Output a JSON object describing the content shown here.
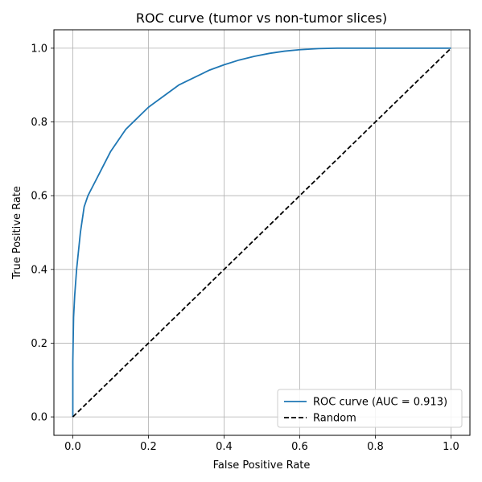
{
  "chart_data": {
    "type": "line",
    "title": "ROC curve (tumor vs non-tumor slices)",
    "xlabel": "False Positive Rate",
    "ylabel": "True Positive Rate",
    "xlim": [
      -0.05,
      1.05
    ],
    "ylim": [
      -0.05,
      1.05
    ],
    "grid": true,
    "legend_position": "lower-right",
    "x_ticks": [
      "0.0",
      "0.2",
      "0.4",
      "0.6",
      "0.8",
      "1.0"
    ],
    "y_ticks": [
      "0.0",
      "0.2",
      "0.4",
      "0.6",
      "0.8",
      "1.0"
    ],
    "series": [
      {
        "name": "ROC curve (AUC = 0.913)",
        "color": "#1f77b4",
        "style": "solid",
        "x": [
          0.0,
          0.0,
          0.002,
          0.005,
          0.01,
          0.015,
          0.02,
          0.03,
          0.04,
          0.05,
          0.06,
          0.08,
          0.1,
          0.12,
          0.14,
          0.16,
          0.18,
          0.2,
          0.24,
          0.28,
          0.32,
          0.36,
          0.4,
          0.44,
          0.48,
          0.52,
          0.56,
          0.6,
          0.65,
          0.7,
          0.8,
          0.9,
          1.0
        ],
        "y": [
          0.0,
          0.15,
          0.27,
          0.33,
          0.4,
          0.45,
          0.5,
          0.57,
          0.6,
          0.62,
          0.64,
          0.68,
          0.72,
          0.75,
          0.78,
          0.8,
          0.82,
          0.84,
          0.87,
          0.9,
          0.92,
          0.94,
          0.955,
          0.968,
          0.978,
          0.986,
          0.992,
          0.996,
          0.999,
          1.0,
          1.0,
          1.0,
          1.0
        ]
      },
      {
        "name": "Random",
        "color": "#000000",
        "style": "dashed",
        "x": [
          0.0,
          1.0
        ],
        "y": [
          0.0,
          1.0
        ]
      }
    ]
  }
}
